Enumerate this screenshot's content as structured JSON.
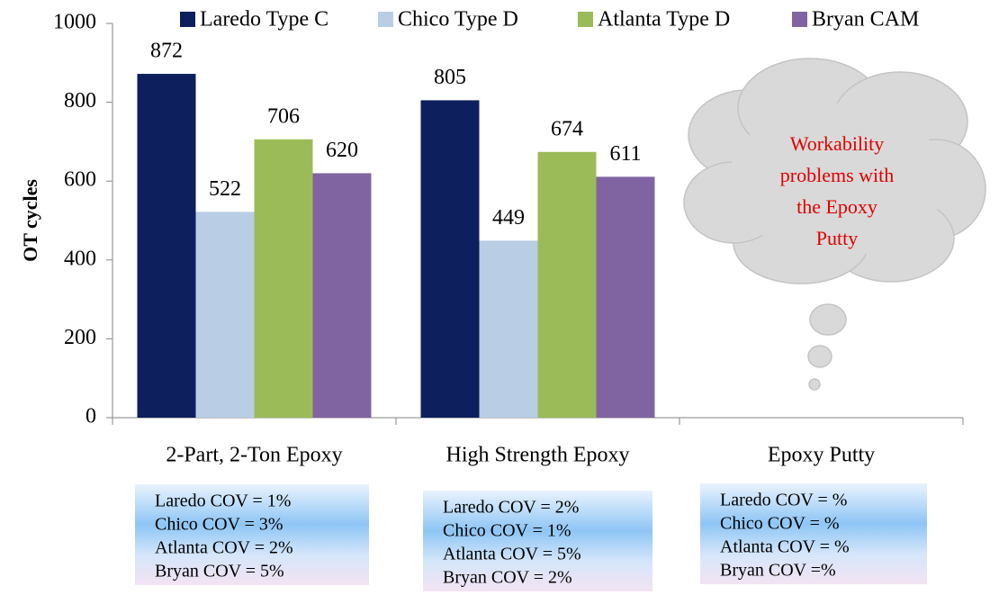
{
  "chart_data": {
    "type": "bar",
    "y_label": "OT cycles",
    "categories": [
      "2-Part, 2-Ton Epoxy",
      "High Strength Epoxy",
      "Epoxy Putty"
    ],
    "series": [
      {
        "name": "Laredo Type C",
        "color": "#0d1f5c",
        "values": [
          872,
          805,
          null
        ]
      },
      {
        "name": "Chico Type D",
        "color": "#b9cde5",
        "values": [
          522,
          449,
          null
        ]
      },
      {
        "name": "Atlanta Type D",
        "color": "#9bbb59",
        "values": [
          706,
          674,
          null
        ]
      },
      {
        "name": "Bryan CAM",
        "color": "#8064a2",
        "values": [
          620,
          611,
          null
        ]
      }
    ],
    "ylim": [
      0,
      1000
    ],
    "yticks": [
      0,
      200,
      400,
      600,
      800,
      1000
    ],
    "legend": "top",
    "data_labels": true,
    "annotation": {
      "lines": [
        "Workability",
        "problems with",
        "the Epoxy",
        "Putty"
      ],
      "color": "#e00000"
    },
    "cov_boxes": [
      [
        "Laredo COV = 1%",
        "Chico COV = 3%",
        "Atlanta COV = 2%",
        "Bryan COV = 5%"
      ],
      [
        "Laredo COV = 2%",
        "Chico COV = 1%",
        "Atlanta COV = 5%",
        "Bryan COV = 2%"
      ],
      [
        "Laredo COV = %",
        "Chico COV = %",
        "Atlanta COV = %",
        "Bryan COV =%"
      ]
    ]
  }
}
